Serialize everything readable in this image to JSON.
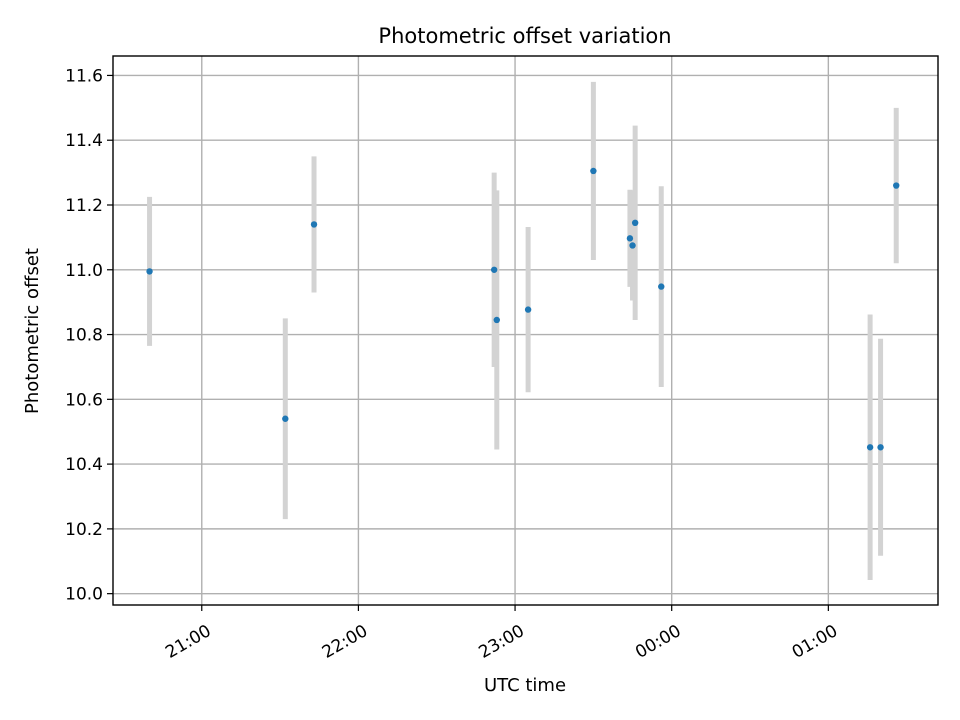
{
  "chart_data": {
    "type": "scatter",
    "title": "Photometric offset variation",
    "xlabel": "UTC time",
    "ylabel": "Photometric offset",
    "x_unit": "UTC",
    "xlim": [
      "2000-01-01T20:26:00",
      "2000-01-02T01:42:00"
    ],
    "ylim": [
      9.965,
      11.66
    ],
    "xticks": [
      {
        "t": "2000-01-01T21:00:00",
        "label": "21:00"
      },
      {
        "t": "2000-01-01T22:00:00",
        "label": "22:00"
      },
      {
        "t": "2000-01-01T23:00:00",
        "label": "23:00"
      },
      {
        "t": "2000-01-02T00:00:00",
        "label": "00:00"
      },
      {
        "t": "2000-01-02T01:00:00",
        "label": "01:00"
      }
    ],
    "yticks": [
      10.0,
      10.2,
      10.4,
      10.6,
      10.8,
      11.0,
      11.2,
      11.4,
      11.6
    ],
    "ytick_labels": [
      "10.0",
      "10.2",
      "10.4",
      "10.6",
      "10.8",
      "11.0",
      "11.2",
      "11.4",
      "11.6"
    ],
    "grid": true,
    "point_color": "#1f77b4",
    "errorbar_color": "#d3d3d3",
    "series": [
      {
        "points": [
          {
            "t": "2000-01-01T20:40:00",
            "y": 10.995,
            "yerr": 0.23
          },
          {
            "t": "2000-01-01T21:32:00",
            "y": 10.54,
            "yerr": 0.31
          },
          {
            "t": "2000-01-01T21:43:00",
            "y": 11.14,
            "yerr": 0.21
          },
          {
            "t": "2000-01-01T22:52:00",
            "y": 11.0,
            "yerr": 0.3
          },
          {
            "t": "2000-01-01T22:53:00",
            "y": 10.845,
            "yerr": 0.4
          },
          {
            "t": "2000-01-01T23:05:00",
            "y": 10.877,
            "yerr": 0.255
          },
          {
            "t": "2000-01-01T23:30:00",
            "y": 11.305,
            "yerr": 0.275
          },
          {
            "t": "2000-01-01T23:44:00",
            "y": 11.097,
            "yerr": 0.15
          },
          {
            "t": "2000-01-01T23:45:00",
            "y": 11.075,
            "yerr": 0.17
          },
          {
            "t": "2000-01-01T23:46:00",
            "y": 11.145,
            "yerr": 0.3
          },
          {
            "t": "2000-01-01T23:56:00",
            "y": 10.948,
            "yerr": 0.31
          },
          {
            "t": "2000-01-02T01:16:00",
            "y": 10.452,
            "yerr": 0.41
          },
          {
            "t": "2000-01-02T01:20:00",
            "y": 10.452,
            "yerr": 0.335
          },
          {
            "t": "2000-01-02T01:26:00",
            "y": 11.26,
            "yerr": 0.24
          }
        ]
      }
    ]
  }
}
